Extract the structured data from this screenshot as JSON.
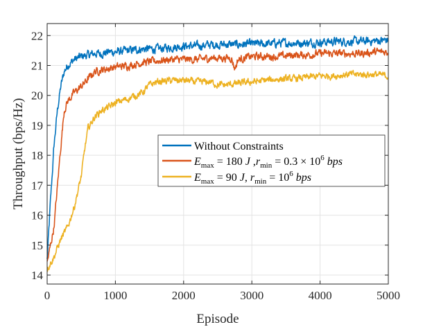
{
  "chart_data": {
    "type": "line",
    "title": "",
    "xlabel": "Episode",
    "ylabel": "Throughput (bps/Hz)",
    "xlim": [
      0,
      5000
    ],
    "ylim": [
      13.7,
      22.4
    ],
    "xticks": [
      0,
      1000,
      2000,
      3000,
      4000,
      5000
    ],
    "xtick_labels": [
      "0",
      "1000",
      "2000",
      "3000",
      "4000",
      "5000"
    ],
    "yticks": [
      14,
      15,
      16,
      17,
      18,
      19,
      20,
      21,
      22
    ],
    "ytick_labels": [
      "14",
      "15",
      "16",
      "17",
      "18",
      "19",
      "20",
      "21",
      "22"
    ],
    "grid": true,
    "legend_position": "center-right",
    "series": [
      {
        "name": "Without Constraints",
        "color": "#0072BD",
        "x": [
          0,
          50,
          100,
          150,
          200,
          250,
          300,
          400,
          500,
          600,
          700,
          800,
          900,
          1000,
          1200,
          1400,
          1600,
          1800,
          2000,
          2200,
          2400,
          2600,
          2800,
          3000,
          3200,
          3400,
          3600,
          3800,
          4000,
          4200,
          4400,
          4600,
          4800,
          5000
        ],
        "y": [
          14.5,
          16.5,
          18.3,
          19.5,
          20.3,
          20.8,
          21.0,
          21.2,
          21.3,
          21.35,
          21.4,
          21.4,
          21.45,
          21.45,
          21.5,
          21.55,
          21.55,
          21.6,
          21.65,
          21.65,
          21.7,
          21.7,
          21.7,
          21.72,
          21.72,
          21.75,
          21.75,
          21.75,
          21.78,
          21.8,
          21.8,
          21.8,
          21.82,
          21.85
        ]
      },
      {
        "name": "E_max = 180 J, r_min = 0.3 × 10^6 bps",
        "color": "#D95319",
        "x": [
          0,
          100,
          200,
          250,
          300,
          400,
          500,
          600,
          700,
          800,
          900,
          1000,
          1200,
          1400,
          1600,
          1800,
          2000,
          2200,
          2400,
          2600,
          2700,
          2750,
          2800,
          3000,
          3200,
          3400,
          3600,
          3800,
          4000,
          4200,
          4400,
          4600,
          4800,
          5000
        ],
        "y": [
          14.4,
          15.6,
          18.3,
          19.5,
          19.8,
          20.1,
          20.3,
          20.55,
          20.8,
          20.85,
          20.9,
          20.95,
          21.0,
          21.1,
          21.15,
          21.2,
          21.2,
          21.2,
          21.25,
          21.25,
          21.25,
          20.9,
          21.2,
          21.3,
          21.3,
          21.3,
          21.35,
          21.35,
          21.4,
          21.4,
          21.4,
          21.4,
          21.45,
          21.45
        ]
      },
      {
        "name": "E_max = 90 J, r_min = 10^6 bps",
        "color": "#EDB120",
        "x": [
          0,
          100,
          200,
          300,
          400,
          500,
          550,
          600,
          700,
          800,
          900,
          1000,
          1200,
          1400,
          1500,
          1600,
          1800,
          2000,
          2200,
          2400,
          2500,
          2600,
          2800,
          3000,
          3200,
          3400,
          3600,
          3800,
          4000,
          4200,
          4400,
          4600,
          4800,
          5000
        ],
        "y": [
          14.2,
          14.6,
          15.2,
          15.6,
          16.3,
          17.3,
          18.2,
          18.9,
          19.3,
          19.5,
          19.6,
          19.75,
          19.9,
          20.1,
          20.35,
          20.45,
          20.5,
          20.5,
          20.45,
          20.45,
          20.35,
          20.35,
          20.4,
          20.45,
          20.5,
          20.55,
          20.55,
          20.6,
          20.65,
          20.65,
          20.7,
          20.7,
          20.7,
          20.65
        ]
      }
    ]
  },
  "legend": {
    "entries": [
      {
        "key": "s0",
        "text": "Without Constraints"
      },
      {
        "key": "s1",
        "e_sym": "E",
        "e_sub": "max",
        "e_val": " = 180 ",
        "e_unit": "J",
        "sep": " ,",
        "r_sym": "r",
        "r_sub": "min",
        "r_val": " = 0.3 × 10",
        "r_exp": "6",
        "r_unit": "bps"
      },
      {
        "key": "s2",
        "e_sym": "E",
        "e_sub": "max",
        "e_val": " = 90 ",
        "e_unit": "J",
        "sep": ", ",
        "r_sym": "r",
        "r_sub": "min",
        "r_val": " = 10",
        "r_exp": "6",
        "r_unit": "bps"
      }
    ]
  }
}
